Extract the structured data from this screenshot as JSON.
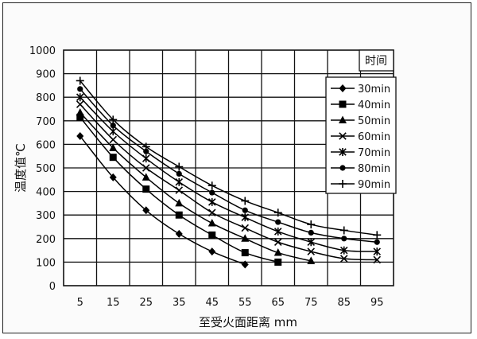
{
  "chart_data": {
    "type": "line",
    "title": "",
    "xlabel": "至受火面距离 mm",
    "ylabel": "温度值℃",
    "x": [
      5,
      15,
      25,
      35,
      45,
      55,
      65,
      75,
      85,
      95
    ],
    "xlim": [
      0,
      100
    ],
    "ylim": [
      0,
      1000
    ],
    "yticks": [
      0,
      100,
      200,
      300,
      400,
      500,
      600,
      700,
      800,
      900,
      1000
    ],
    "xticks": [
      5,
      15,
      25,
      35,
      45,
      55,
      65,
      75,
      85,
      95
    ],
    "grid": true,
    "legend_title": "时间",
    "legend_position": "right",
    "series": [
      {
        "name": "30min",
        "marker": "diamond",
        "points": [
          [
            5,
            635
          ],
          [
            15,
            460
          ],
          [
            25,
            320
          ],
          [
            35,
            220
          ],
          [
            45,
            145
          ],
          [
            55,
            90
          ]
        ]
      },
      {
        "name": "40min",
        "marker": "square",
        "points": [
          [
            5,
            715
          ],
          [
            15,
            545
          ],
          [
            25,
            410
          ],
          [
            35,
            300
          ],
          [
            45,
            215
          ],
          [
            55,
            140
          ],
          [
            65,
            100
          ]
        ]
      },
      {
        "name": "50min",
        "marker": "triangle",
        "points": [
          [
            5,
            735
          ],
          [
            15,
            585
          ],
          [
            25,
            460
          ],
          [
            35,
            350
          ],
          [
            45,
            265
          ],
          [
            55,
            200
          ],
          [
            65,
            140
          ],
          [
            75,
            105
          ]
        ]
      },
      {
        "name": "60min",
        "marker": "x",
        "points": [
          [
            5,
            770
          ],
          [
            15,
            620
          ],
          [
            25,
            500
          ],
          [
            35,
            405
          ],
          [
            45,
            310
          ],
          [
            55,
            245
          ],
          [
            65,
            185
          ],
          [
            75,
            145
          ],
          [
            85,
            115
          ],
          [
            95,
            110
          ]
        ]
      },
      {
        "name": "70min",
        "marker": "asterisk",
        "points": [
          [
            5,
            800
          ],
          [
            15,
            655
          ],
          [
            25,
            540
          ],
          [
            35,
            440
          ],
          [
            45,
            355
          ],
          [
            55,
            290
          ],
          [
            65,
            230
          ],
          [
            75,
            185
          ],
          [
            85,
            150
          ],
          [
            95,
            145
          ]
        ]
      },
      {
        "name": "80min",
        "marker": "circle",
        "points": [
          [
            5,
            835
          ],
          [
            15,
            680
          ],
          [
            25,
            570
          ],
          [
            35,
            475
          ],
          [
            45,
            395
          ],
          [
            55,
            320
          ],
          [
            65,
            270
          ],
          [
            75,
            225
          ],
          [
            85,
            200
          ],
          [
            95,
            185
          ]
        ]
      },
      {
        "name": "90min",
        "marker": "plus",
        "points": [
          [
            5,
            870
          ],
          [
            15,
            705
          ],
          [
            25,
            590
          ],
          [
            35,
            505
          ],
          [
            45,
            425
          ],
          [
            55,
            360
          ],
          [
            65,
            310
          ],
          [
            75,
            260
          ],
          [
            85,
            235
          ],
          [
            95,
            215
          ]
        ]
      }
    ]
  }
}
